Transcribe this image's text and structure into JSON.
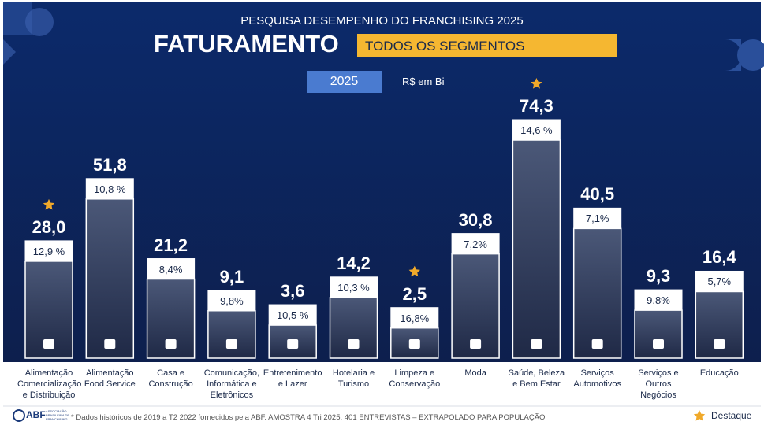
{
  "chart_data": {
    "type": "bar",
    "supertitle": "PESQUISA DESEMPENHO DO FRANCHISING 2025",
    "title": "FATURAMENTO",
    "subtitle": "TODOS OS SEGMENTOS",
    "year": "2025",
    "unit_label": "R$ em Bi",
    "categories": [
      "Alimentação Comercialização e Distribuição",
      "Alimentação Food Service",
      "Casa e Construção",
      "Comunicação, Informática e Eletrônicos",
      "Entretenimento e Lazer",
      "Hotelaria e Turismo",
      "Limpeza e Conservação",
      "Moda",
      "Saúde, Beleza e Bem Estar",
      "Serviços Automotivos",
      "Serviços e Outros Negócios",
      "Educação"
    ],
    "values": [
      28.0,
      51.8,
      21.2,
      9.1,
      3.6,
      14.2,
      2.5,
      30.8,
      74.3,
      40.5,
      9.3,
      16.4
    ],
    "value_labels": [
      "28,0",
      "51,8",
      "21,2",
      "9,1",
      "3,6",
      "14,2",
      "2,5",
      "30,8",
      "74,3",
      "40,5",
      "9,3",
      "16,4"
    ],
    "growth": {
      "values": [
        12.9,
        10.8,
        8.4,
        9.8,
        10.5,
        10.3,
        16.8,
        7.2,
        14.6,
        7.1,
        9.8,
        5.7
      ],
      "labels": [
        "12,9 %",
        "10,8 %",
        "8,4%",
        "9,8%",
        "10,5 %",
        "10,3 %",
        "16,8%",
        "7,2%",
        "14,6 %",
        "7,1%",
        "9,8%",
        "5,7%"
      ]
    },
    "highlight": [
      true,
      false,
      false,
      false,
      false,
      false,
      true,
      false,
      true,
      false,
      false,
      false
    ],
    "highlight_label": "Destaque",
    "footnote": "* Dados históricos de 2019 a T2 2022 fornecidos pela ABF. AMOSTRA 4 Tri 2025: 401 ENTREVISTAS – EXTRAPOLADO PARA POPULAÇÃO",
    "logo": "ABF",
    "logo_subtitle": "ASSOCIAÇÃO BRASILEIRA DE FRANCHISING"
  }
}
